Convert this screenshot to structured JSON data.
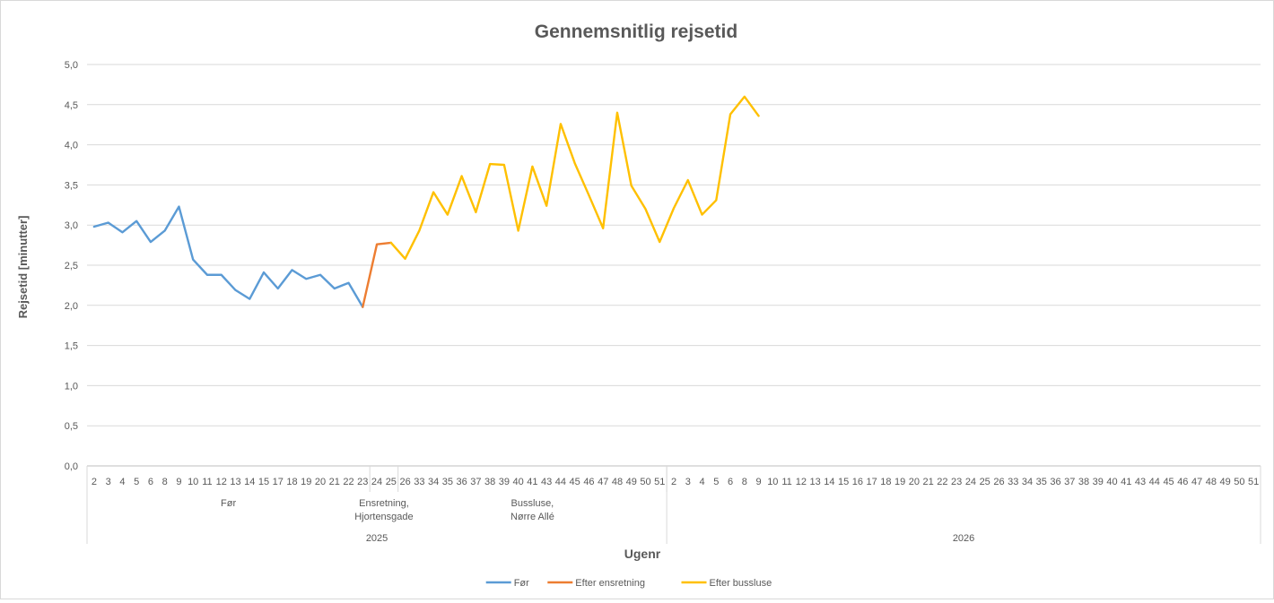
{
  "chart_data": {
    "type": "line",
    "title": "Gennemsnitlig rejsetid",
    "ylabel": "Rejsetid [minutter]",
    "xlabel": "Ugenr",
    "ylim": [
      0,
      5
    ],
    "ytick_labels": [
      "0,0",
      "0,5",
      "1,0",
      "1,5",
      "2,0",
      "2,5",
      "3,0",
      "3,5",
      "4,0",
      "4,5",
      "5,0"
    ],
    "grid": "horizontal",
    "legend_position": "bottom",
    "x": [
      "2",
      "3",
      "4",
      "5",
      "6",
      "8",
      "9",
      "10",
      "11",
      "12",
      "13",
      "14",
      "15",
      "17",
      "18",
      "19",
      "20",
      "21",
      "22",
      "23",
      "24",
      "25",
      "26",
      "33",
      "34",
      "35",
      "36",
      "37",
      "38",
      "39",
      "40",
      "41",
      "43",
      "44",
      "45",
      "46",
      "47",
      "48",
      "49",
      "50",
      "51",
      "2",
      "3",
      "4",
      "5",
      "6",
      "8",
      "9",
      "10",
      "11",
      "12",
      "13",
      "14",
      "15",
      "16",
      "17",
      "18",
      "19",
      "20",
      "21",
      "22",
      "23",
      "24",
      "25",
      "26",
      "33",
      "34",
      "35",
      "36",
      "37",
      "38",
      "39",
      "40",
      "41",
      "43",
      "44",
      "45",
      "46",
      "47",
      "48",
      "49",
      "50",
      "51"
    ],
    "phase_groups": [
      {
        "label": "Før",
        "start": 0,
        "end": 19
      },
      {
        "label": "Ensretning, Hjortensgade",
        "start": 20,
        "end": 21
      },
      {
        "label": "Bussluse, Nørre Allé",
        "start": 22,
        "end": 40
      }
    ],
    "year_groups": [
      {
        "label": "2025",
        "start": 0,
        "end": 40
      },
      {
        "label": "2026",
        "start": 41,
        "end": 82
      }
    ],
    "series": [
      {
        "name": "Før",
        "color": "#5b9bd5",
        "values": [
          2.98,
          3.03,
          2.91,
          3.05,
          2.79,
          2.93,
          3.23,
          2.57,
          2.38,
          2.38,
          2.19,
          2.08,
          2.41,
          2.21,
          2.44,
          2.33,
          2.38,
          2.21,
          2.28,
          1.98,
          null,
          null,
          null,
          null,
          null,
          null,
          null,
          null,
          null,
          null,
          null,
          null,
          null,
          null,
          null,
          null,
          null,
          null,
          null,
          null,
          null,
          null,
          null,
          null,
          null,
          null,
          null,
          null,
          null,
          null,
          null,
          null,
          null,
          null,
          null,
          null,
          null,
          null,
          null,
          null,
          null,
          null,
          null,
          null,
          null,
          null,
          null,
          null,
          null,
          null,
          null,
          null,
          null,
          null,
          null,
          null,
          null,
          null,
          null,
          null,
          null,
          null,
          null
        ]
      },
      {
        "name": "Efter ensretning",
        "color": "#ed7d31",
        "values": [
          null,
          null,
          null,
          null,
          null,
          null,
          null,
          null,
          null,
          null,
          null,
          null,
          null,
          null,
          null,
          null,
          null,
          null,
          null,
          1.98,
          2.76,
          2.78,
          null,
          null,
          null,
          null,
          null,
          null,
          null,
          null,
          null,
          null,
          null,
          null,
          null,
          null,
          null,
          null,
          null,
          null,
          null,
          null,
          null,
          null,
          null,
          null,
          null,
          null,
          null,
          null,
          null,
          null,
          null,
          null,
          null,
          null,
          null,
          null,
          null,
          null,
          null,
          null,
          null,
          null,
          null,
          null,
          null,
          null,
          null,
          null,
          null,
          null,
          null,
          null,
          null,
          null,
          null,
          null,
          null,
          null,
          null,
          null,
          null
        ]
      },
      {
        "name": "Efter bussluse",
        "color": "#ffc000",
        "values": [
          null,
          null,
          null,
          null,
          null,
          null,
          null,
          null,
          null,
          null,
          null,
          null,
          null,
          null,
          null,
          null,
          null,
          null,
          null,
          null,
          null,
          2.78,
          2.58,
          2.93,
          3.41,
          3.13,
          3.61,
          3.16,
          3.76,
          3.75,
          2.93,
          3.73,
          3.24,
          4.26,
          3.77,
          3.37,
          2.96,
          4.4,
          3.49,
          3.2,
          2.79,
          3.21,
          3.56,
          3.13,
          3.31,
          4.38,
          4.6,
          4.36,
          null,
          null,
          null,
          null,
          null,
          null,
          null,
          null,
          null,
          null,
          null,
          null,
          null,
          null,
          null,
          null,
          null,
          null,
          null,
          null,
          null,
          null,
          null,
          null,
          null,
          null,
          null,
          null,
          null,
          null,
          null,
          null,
          null,
          null,
          null
        ]
      }
    ]
  }
}
